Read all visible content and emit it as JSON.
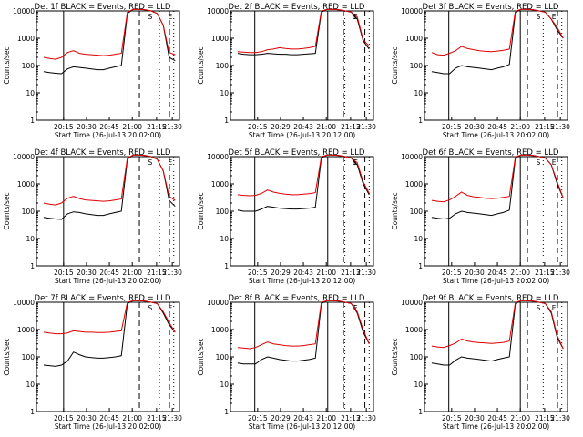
{
  "chart_data": {
    "type": "line",
    "scale": "log",
    "ylim": [
      1,
      10000
    ],
    "y_ticks": [
      1,
      10,
      100,
      1000,
      10000
    ],
    "y_tick_labels": [
      "1",
      "10",
      "100",
      "1000",
      "10000"
    ],
    "ylabel": "Counts/sec",
    "grid": false,
    "colors": {
      "black_series": "#000000",
      "red_series": "#e00000"
    },
    "left_col_x_tick_labels": [
      "20:15",
      "20:30",
      "20:45",
      "21:00",
      "21:15",
      "21:30"
    ],
    "other_col_x_tick_labels": [
      "20:15",
      "20:29",
      "20:43",
      "21:00",
      "21:13",
      "21:30"
    ],
    "right_col_x_tick_labels": [
      "20:15",
      "20:30",
      "20:45",
      "21:00",
      "21:15",
      "21:30"
    ],
    "markers": [
      "S",
      "E"
    ],
    "panels": [
      {
        "title": "Det 1f BLACK = Events, RED = LLD",
        "xlabel": "Start Time (26-Jul-13 20:02:00)",
        "series": [
          {
            "name": "BLACK",
            "values": [
              60,
              55,
              52,
              50,
              75,
              90,
              85,
              80,
              75,
              70,
              70,
              80,
              90,
              100,
              8000,
              12000,
              12000,
              11000,
              10000,
              8000,
              3000,
              200,
              150
            ]
          },
          {
            "name": "RED",
            "values": [
              200,
              180,
              170,
              200,
              300,
              350,
              280,
              260,
              250,
              240,
              230,
              240,
              260,
              280,
              9000,
              12000,
              12000,
              11000,
              10000,
              8000,
              3000,
              300,
              250
            ]
          }
        ]
      },
      {
        "title": "Det 2f BLACK = Events, RED = LLD",
        "xlabel": "Start Time (26-Jul-13 20:12:00)",
        "series": [
          {
            "name": "BLACK",
            "values": [
              280,
              260,
              250,
              250,
              260,
              280,
              270,
              260,
              260,
              250,
              250,
              260,
              270,
              280,
              9000,
              12000,
              12000,
              11000,
              10000,
              9000,
              5000,
              800,
              400
            ]
          },
          {
            "name": "RED",
            "values": [
              320,
              310,
              300,
              300,
              320,
              380,
              400,
              450,
              420,
              400,
              400,
              420,
              450,
              500,
              10000,
              12000,
              12000,
              11000,
              10000,
              9000,
              6000,
              900,
              500
            ]
          }
        ]
      },
      {
        "title": "Det 3f BLACK = Events, RED = LLD",
        "xlabel": "Start Time (26-Jul-13 20:02:00)",
        "series": [
          {
            "name": "BLACK",
            "values": [
              60,
              55,
              50,
              50,
              80,
              100,
              90,
              85,
              80,
              75,
              70,
              80,
              90,
              110,
              9000,
              12000,
              12000,
              11000,
              10000,
              9000,
              5000,
              2000,
              1000
            ]
          },
          {
            "name": "RED",
            "values": [
              300,
              250,
              240,
              280,
              350,
              500,
              420,
              380,
              350,
              330,
              320,
              340,
              360,
              400,
              10000,
              12000,
              12000,
              11000,
              10000,
              9000,
              5000,
              2500,
              1000
            ]
          }
        ]
      },
      {
        "title": "Det 4f BLACK = Events, RED = LLD",
        "xlabel": "Start Time (26-Jul-13 20:02:00)",
        "series": [
          {
            "name": "BLACK",
            "values": [
              60,
              55,
              52,
              50,
              80,
              95,
              90,
              80,
              75,
              70,
              70,
              80,
              90,
              100,
              8000,
              12000,
              12000,
              11000,
              10000,
              8000,
              3000,
              250,
              150
            ]
          },
          {
            "name": "RED",
            "values": [
              200,
              180,
              170,
              200,
              300,
              350,
              290,
              260,
              250,
              240,
              230,
              240,
              260,
              280,
              9000,
              12000,
              12000,
              11000,
              10000,
              8000,
              3000,
              350,
              250
            ]
          }
        ]
      },
      {
        "title": "Det 5f BLACK = Events, RED = LLD",
        "xlabel": "Start Time (26-Jul-13 20:12:00)",
        "series": [
          {
            "name": "BLACK",
            "values": [
              110,
              100,
              100,
              100,
              120,
              150,
              140,
              130,
              125,
              120,
              120,
              125,
              130,
              140,
              9000,
              12000,
              12000,
              11000,
              10000,
              9000,
              5000,
              1000,
              400
            ]
          },
          {
            "name": "RED",
            "values": [
              400,
              380,
              370,
              380,
              450,
              600,
              500,
              450,
              420,
              400,
              400,
              420,
              440,
              480,
              10000,
              12000,
              12000,
              11000,
              10000,
              9000,
              6000,
              1200,
              450
            ]
          }
        ]
      },
      {
        "title": "Det 6f BLACK = Events, RED = LLD",
        "xlabel": "Start Time (26-Jul-13 20:02:00)",
        "series": [
          {
            "name": "BLACK",
            "values": [
              60,
              55,
              52,
              55,
              80,
              100,
              90,
              85,
              80,
              75,
              70,
              80,
              90,
              110,
              9000,
              12000,
              12000,
              11000,
              10000,
              9000,
              5000,
              1000,
              300
            ]
          },
          {
            "name": "RED",
            "values": [
              250,
              230,
              220,
              260,
              350,
              500,
              380,
              340,
              320,
              300,
              290,
              300,
              320,
              350,
              10000,
              12000,
              12000,
              11000,
              10000,
              9000,
              5000,
              1200,
              300
            ]
          }
        ]
      },
      {
        "title": "Det 7f BLACK = Events, RED = LLD",
        "xlabel": "Start Time (26-Jul-13 20:02:00)",
        "series": [
          {
            "name": "BLACK",
            "values": [
              50,
              48,
              45,
              50,
              70,
              150,
              120,
              100,
              95,
              90,
              90,
              95,
              100,
              110,
              9000,
              12000,
              12000,
              11000,
              10000,
              9000,
              4000,
              1500,
              800
            ]
          },
          {
            "name": "RED",
            "values": [
              800,
              750,
              700,
              700,
              750,
              900,
              850,
              800,
              800,
              780,
              780,
              800,
              850,
              900,
              10000,
              12000,
              12000,
              11000,
              10000,
              9000,
              4500,
              1800,
              800
            ]
          }
        ]
      },
      {
        "title": "Det 8f BLACK = Events, RED = LLD",
        "xlabel": "Start Time (26-Jul-13 20:12:00)",
        "series": [
          {
            "name": "BLACK",
            "values": [
              60,
              55,
              55,
              55,
              80,
              100,
              90,
              80,
              75,
              70,
              70,
              75,
              80,
              90,
              9000,
              12000,
              12000,
              11000,
              10000,
              9000,
              4000,
              800,
              300
            ]
          },
          {
            "name": "RED",
            "values": [
              220,
              210,
              200,
              220,
              280,
              350,
              300,
              280,
              260,
              250,
              250,
              260,
              280,
              300,
              10000,
              12000,
              12000,
              11000,
              10000,
              9000,
              4500,
              1000,
              300
            ]
          }
        ]
      },
      {
        "title": "Det 9f BLACK = Events, RED = LLD",
        "xlabel": "Start Time (26-Jul-13 20:02:00)",
        "series": [
          {
            "name": "BLACK",
            "values": [
              60,
              55,
              50,
              50,
              75,
              100,
              90,
              85,
              80,
              75,
              70,
              80,
              90,
              100,
              9000,
              12000,
              12000,
              11000,
              10000,
              9000,
              4000,
              500,
              200
            ]
          },
          {
            "name": "RED",
            "values": [
              250,
              230,
              220,
              260,
              320,
              450,
              380,
              350,
              330,
              320,
              310,
              320,
              340,
              380,
              10000,
              12000,
              12000,
              11000,
              10000,
              9000,
              4500,
              600,
              200
            ]
          }
        ]
      }
    ]
  }
}
